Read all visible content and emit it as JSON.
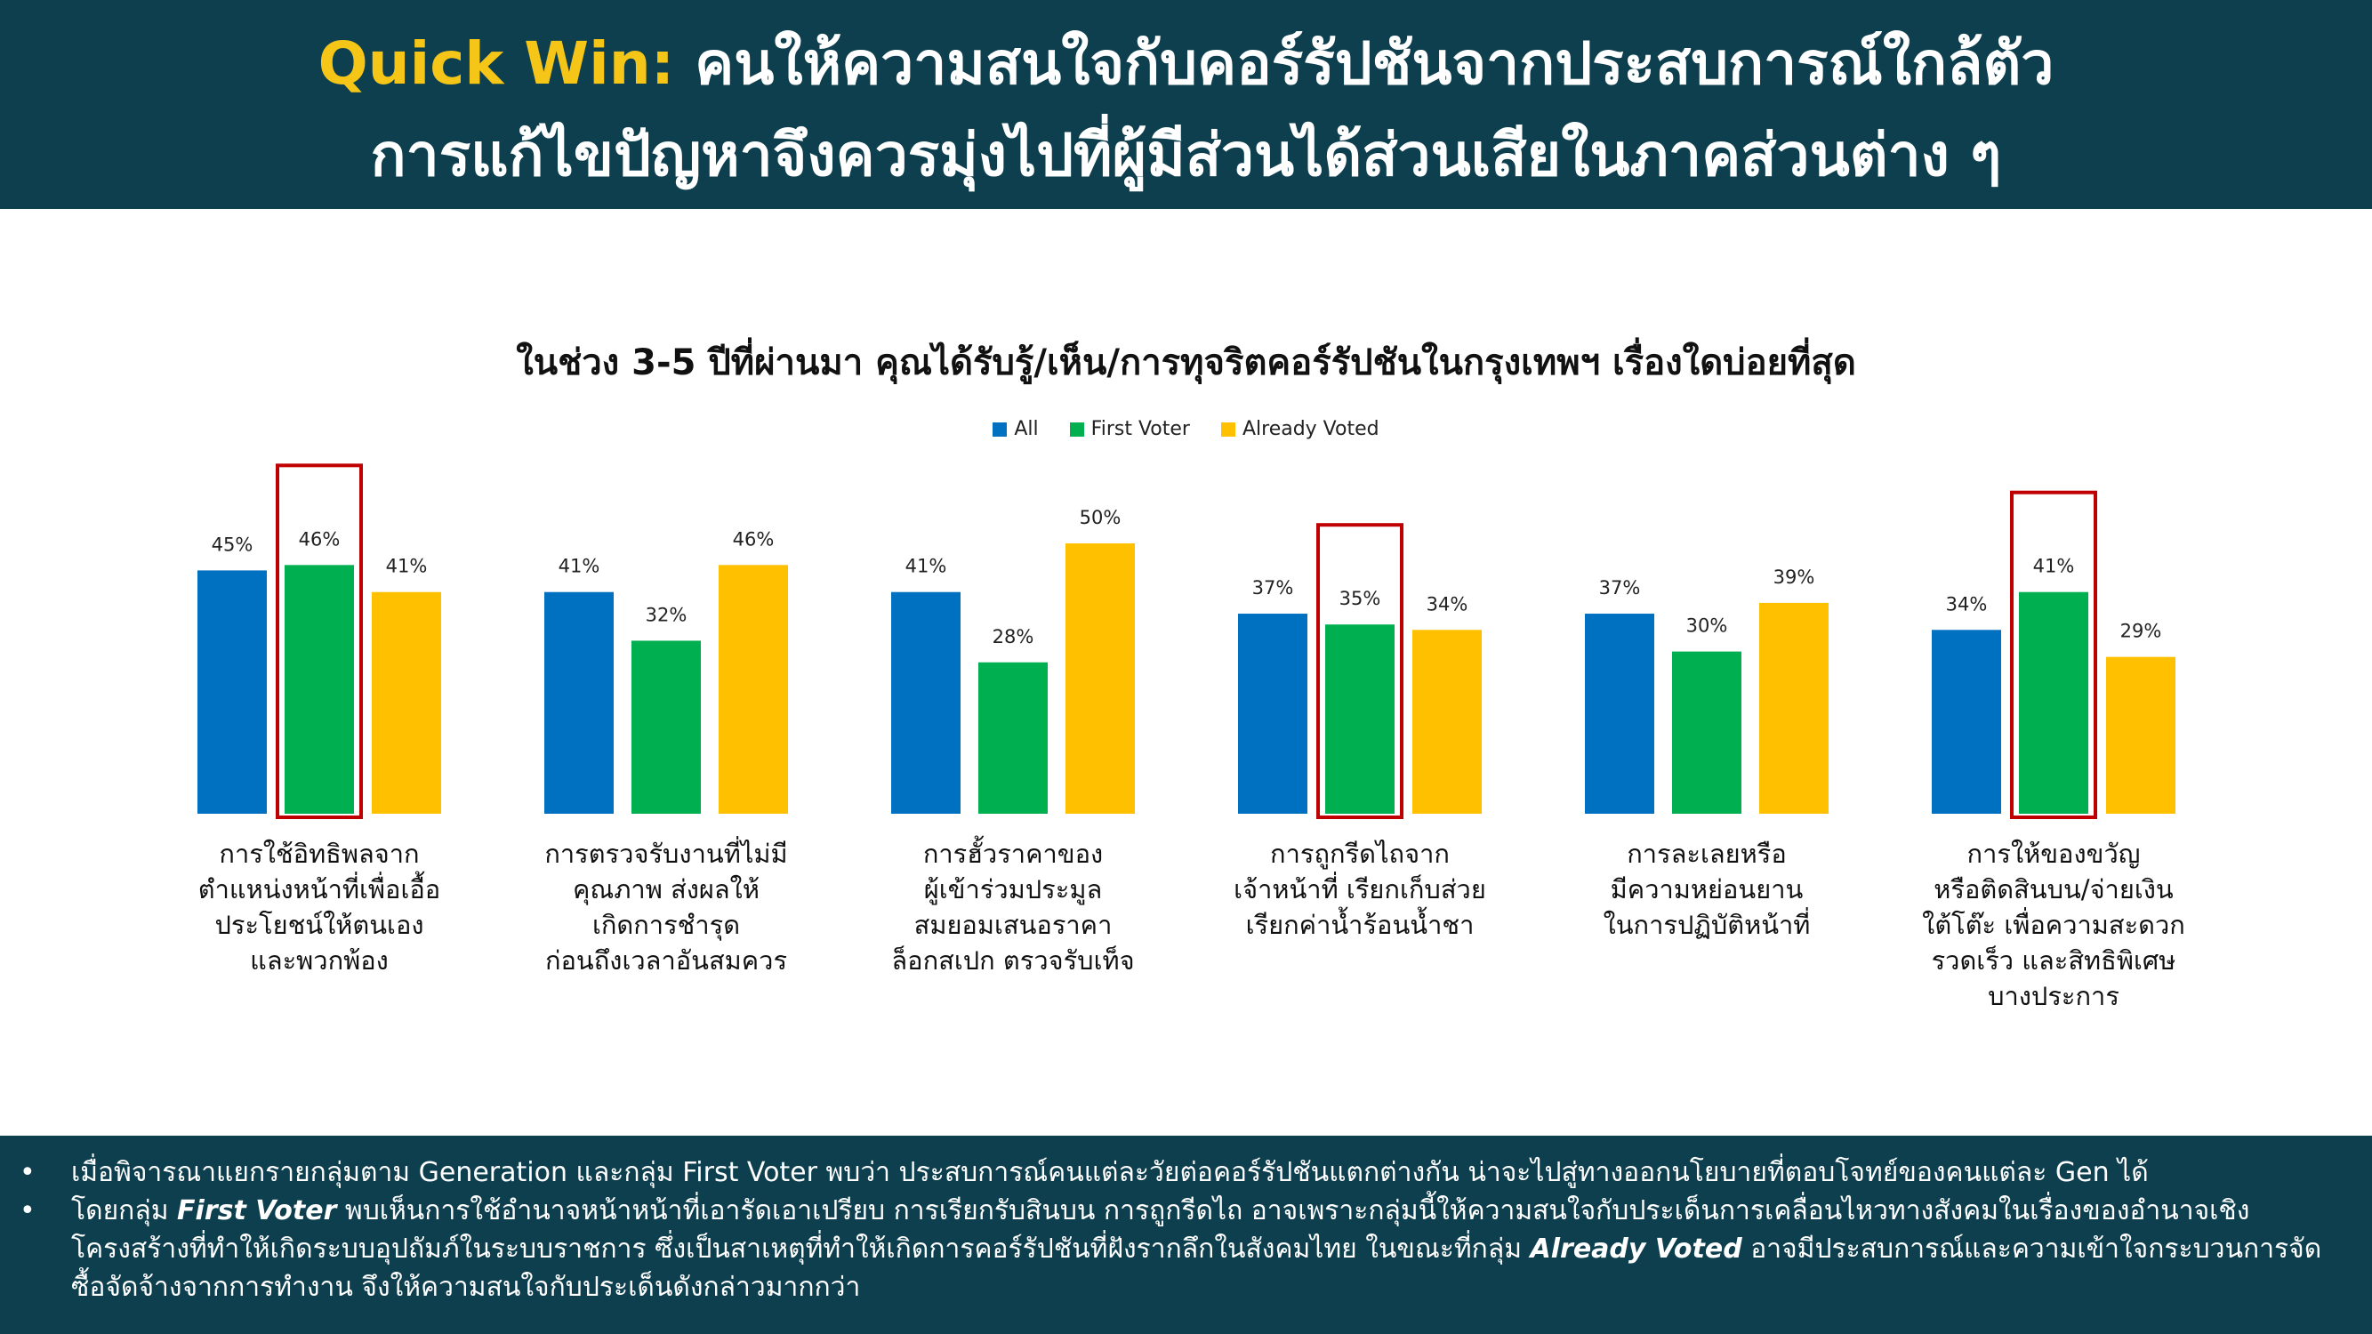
{
  "header": {
    "highlight": "Quick Win:",
    "title_rest": " คนให้ความสนใจกับคอร์รัปชันจากประสบการณ์ใกล้ตัว",
    "line2": "การแก้ไขปัญหาจึงควรมุ่งไปที่ผู้มีส่วนได้ส่วนเสียในภาคส่วนต่าง ๆ"
  },
  "colors": {
    "header_bg": "#0d3f4f",
    "highlight": "#f5c518",
    "all": "#0070c0",
    "first_voter": "#00b050",
    "already_voted": "#ffc000",
    "box": "#c00000"
  },
  "chart_data": {
    "type": "bar",
    "title": "ในช่วง 3-5 ปีที่ผ่านมา คุณได้รับรู้/เห็น/การทุจริตคอร์รัปชันในกรุงเทพฯ เรื่องใดบ่อยที่สุด",
    "legend_position": "top-center",
    "categories": [
      [
        "การใช้อิทธิพลจาก",
        "ตำแหน่งหน้าที่เพื่อเอื้อ",
        "ประโยชน์ให้ตนเอง",
        "และพวกพ้อง"
      ],
      [
        "การตรวจรับงานที่ไม่มี",
        "คุณภาพ ส่งผลให้",
        "เกิดการชำรุด",
        "ก่อนถึงเวลาอันสมควร"
      ],
      [
        "การฮั้วราคาของ",
        "ผู้เข้าร่วมประมูล",
        "สมยอมเสนอราคา",
        "ล็อกสเปก ตรวจรับเท็จ"
      ],
      [
        "การถูกรีดไถจาก",
        "เจ้าหน้าที่ เรียกเก็บส่วย",
        "เรียกค่าน้ำร้อนน้ำชา"
      ],
      [
        "การละเลยหรือ",
        "มีความหย่อนยาน",
        "ในการปฏิบัติหน้าที่"
      ],
      [
        "การให้ของขวัญ",
        "หรือติดสินบน/จ่ายเงิน",
        "ใต้โต๊ะ เพื่อความสะดวก",
        "รวดเร็ว และสิทธิพิเศษ",
        "บางประการ"
      ]
    ],
    "series": [
      {
        "name": "All",
        "color": "#0070c0",
        "values": [
          45,
          41,
          41,
          37,
          37,
          34
        ]
      },
      {
        "name": "First Voter",
        "color": "#00b050",
        "values": [
          46,
          32,
          28,
          35,
          30,
          41
        ]
      },
      {
        "name": "Already Voted",
        "color": "#ffc000",
        "values": [
          41,
          46,
          50,
          34,
          39,
          29
        ]
      }
    ],
    "value_suffix": "%",
    "highlighted": [
      {
        "category": 0,
        "series": 1
      },
      {
        "category": 3,
        "series": 1
      },
      {
        "category": 5,
        "series": 1
      }
    ],
    "ylim": [
      0,
      50
    ]
  },
  "footer": {
    "bullet1": "เมื่อพิจารณาแยกรายกลุ่มตาม Generation และกลุ่ม First Voter พบว่า ประสบการณ์คนแต่ละวัยต่อคอร์รัปชันแตกต่างกัน น่าจะไปสู่ทางออกนโยบายที่ตอบโจทย์ของคนแต่ละ Gen ได้",
    "bullet2_pre": "โดยกลุ่ม ",
    "bullet2_bold1": "First Voter",
    "bullet2_mid": " พบเห็นการใช้อำนาจหน้าหน้าที่เอารัดเอาเปรียบ การเรียกรับสินบน การถูกรีดไถ อาจเพราะกลุ่มนี้ให้ความสนใจกับประเด็นการเคลื่อนไหวทางสังคมในเรื่องของอำนาจเชิงโครงสร้างที่ทำให้เกิดระบบอุปถัมภ์ในระบบราชการ ซึ่งเป็นสาเหตุที่ทำให้เกิดการคอร์รัปชันที่ฝังรากลึกในสังคมไทย ในขณะที่กลุ่ม ",
    "bullet2_bold2": "Already Voted",
    "bullet2_post": " อาจมีประสบการณ์และความเข้าใจกระบวนการจัดซื้อจัดจ้างจากการทำงาน จึงให้ความสนใจกับประเด็นดังกล่าวมากกว่า"
  }
}
